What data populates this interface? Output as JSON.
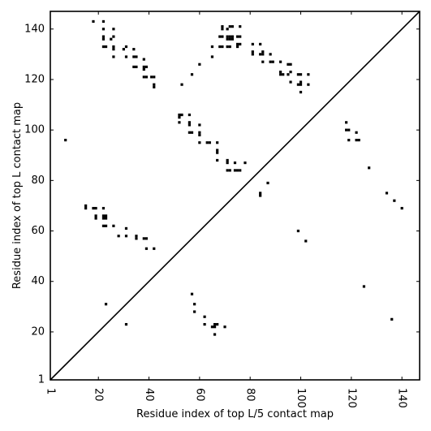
{
  "chart_data": {
    "type": "scatter",
    "title": "",
    "xlabel": "Residue index of top L/5 contact map",
    "ylabel": "Residue index of top L contact map",
    "xlim": [
      1,
      147
    ],
    "ylim": [
      1,
      147
    ],
    "grid": false,
    "x_ticks": [
      1,
      20,
      40,
      60,
      80,
      100,
      120,
      140
    ],
    "y_ticks": [
      1,
      20,
      40,
      60,
      80,
      100,
      120,
      140
    ],
    "x_tick_rotation": 270,
    "diagonal": true,
    "marker": "square",
    "marker_color": "#000000",
    "series": [
      {
        "name": "",
        "points": [
          [
            7,
            96
          ],
          [
            18,
            143
          ],
          [
            22,
            143
          ],
          [
            22,
            140
          ],
          [
            26,
            140
          ],
          [
            22,
            137
          ],
          [
            22,
            136
          ],
          [
            25,
            136
          ],
          [
            26,
            137
          ],
          [
            22,
            133
          ],
          [
            23,
            133
          ],
          [
            26,
            133
          ],
          [
            26,
            132
          ],
          [
            30,
            132
          ],
          [
            31,
            133
          ],
          [
            34,
            132
          ],
          [
            26,
            129
          ],
          [
            31,
            129
          ],
          [
            34,
            129
          ],
          [
            35,
            129
          ],
          [
            38,
            128
          ],
          [
            34,
            125
          ],
          [
            35,
            125
          ],
          [
            38,
            125
          ],
          [
            39,
            125
          ],
          [
            38,
            124
          ],
          [
            38,
            121
          ],
          [
            39,
            121
          ],
          [
            41,
            121
          ],
          [
            42,
            121
          ],
          [
            42,
            118
          ],
          [
            42,
            117
          ],
          [
            53,
            118
          ],
          [
            57,
            122
          ],
          [
            60,
            126
          ],
          [
            65,
            129
          ],
          [
            65,
            133
          ],
          [
            68,
            133
          ],
          [
            69,
            133
          ],
          [
            71,
            133
          ],
          [
            72,
            133
          ],
          [
            75,
            133
          ],
          [
            76,
            134
          ],
          [
            75,
            134
          ],
          [
            68,
            137
          ],
          [
            69,
            137
          ],
          [
            71,
            137
          ],
          [
            72,
            137
          ],
          [
            73,
            137
          ],
          [
            75,
            137
          ],
          [
            76,
            137
          ],
          [
            69,
            140
          ],
          [
            69,
            141
          ],
          [
            71,
            140
          ],
          [
            72,
            141
          ],
          [
            73,
            141
          ],
          [
            76,
            141
          ],
          [
            71,
            136
          ],
          [
            72,
            136
          ],
          [
            73,
            136
          ],
          [
            81,
            134
          ],
          [
            84,
            134
          ],
          [
            81,
            131
          ],
          [
            81,
            130
          ],
          [
            84,
            130
          ],
          [
            85,
            130
          ],
          [
            85,
            131
          ],
          [
            88,
            130
          ],
          [
            85,
            127
          ],
          [
            88,
            127
          ],
          [
            89,
            127
          ],
          [
            92,
            127
          ],
          [
            95,
            126
          ],
          [
            96,
            126
          ],
          [
            92,
            123
          ],
          [
            92,
            122
          ],
          [
            93,
            122
          ],
          [
            95,
            122
          ],
          [
            96,
            123
          ],
          [
            99,
            122
          ],
          [
            100,
            122
          ],
          [
            103,
            122
          ],
          [
            96,
            119
          ],
          [
            99,
            118
          ],
          [
            100,
            118
          ],
          [
            100,
            119
          ],
          [
            103,
            118
          ],
          [
            100,
            115
          ],
          [
            52,
            106
          ],
          [
            53,
            106
          ],
          [
            56,
            106
          ],
          [
            52,
            105
          ],
          [
            52,
            103
          ],
          [
            56,
            103
          ],
          [
            56,
            102
          ],
          [
            60,
            102
          ],
          [
            56,
            99
          ],
          [
            57,
            99
          ],
          [
            60,
            99
          ],
          [
            60,
            98
          ],
          [
            60,
            95
          ],
          [
            63,
            95
          ],
          [
            64,
            95
          ],
          [
            67,
            95
          ],
          [
            67,
            92
          ],
          [
            67,
            91
          ],
          [
            67,
            88
          ],
          [
            71,
            88
          ],
          [
            71,
            87
          ],
          [
            71,
            84
          ],
          [
            72,
            84
          ],
          [
            74,
            84
          ],
          [
            75,
            84
          ],
          [
            76,
            84
          ],
          [
            74,
            87
          ],
          [
            78,
            87
          ],
          [
            84,
            75
          ],
          [
            84,
            74
          ],
          [
            87,
            79
          ],
          [
            118,
            103
          ],
          [
            118,
            100
          ],
          [
            119,
            100
          ],
          [
            122,
            99
          ],
          [
            119,
            96
          ],
          [
            122,
            96
          ],
          [
            123,
            96
          ],
          [
            127,
            85
          ],
          [
            15,
            70
          ],
          [
            15,
            69
          ],
          [
            18,
            69
          ],
          [
            19,
            69
          ],
          [
            22,
            69
          ],
          [
            19,
            66
          ],
          [
            19,
            65
          ],
          [
            22,
            66
          ],
          [
            23,
            66
          ],
          [
            22,
            65
          ],
          [
            23,
            65
          ],
          [
            22,
            62
          ],
          [
            23,
            62
          ],
          [
            26,
            62
          ],
          [
            28,
            58
          ],
          [
            31,
            58
          ],
          [
            31,
            61
          ],
          [
            35,
            58
          ],
          [
            35,
            57
          ],
          [
            38,
            57
          ],
          [
            39,
            57
          ],
          [
            39,
            53
          ],
          [
            42,
            53
          ],
          [
            134,
            75
          ],
          [
            137,
            72
          ],
          [
            140,
            69
          ],
          [
            99,
            60
          ],
          [
            102,
            56
          ],
          [
            23,
            31
          ],
          [
            31,
            23
          ],
          [
            57,
            35
          ],
          [
            58,
            31
          ],
          [
            58,
            28
          ],
          [
            62,
            26
          ],
          [
            62,
            23
          ],
          [
            66,
            23
          ],
          [
            66,
            22
          ],
          [
            67,
            23
          ],
          [
            65,
            22
          ],
          [
            70,
            22
          ],
          [
            66,
            19
          ],
          [
            125,
            38
          ],
          [
            136,
            25
          ]
        ]
      }
    ]
  }
}
